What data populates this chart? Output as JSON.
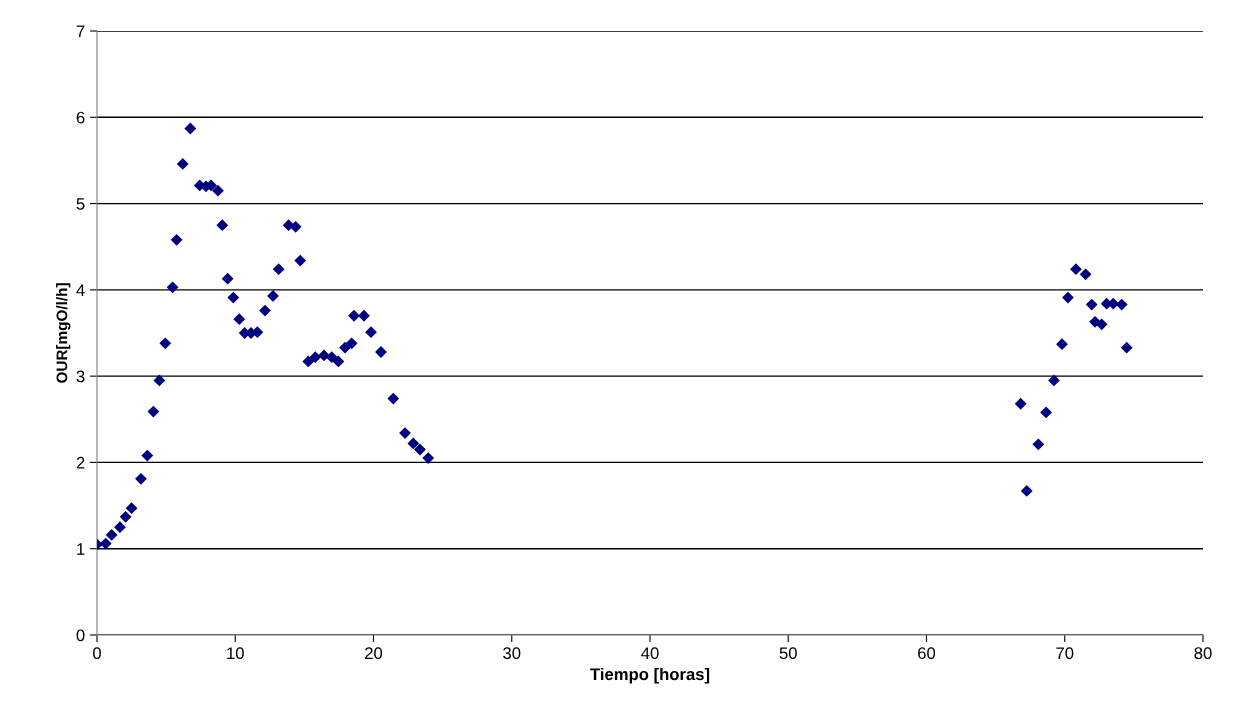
{
  "chart_data": {
    "type": "scatter",
    "xlabel": "Tiempo [horas]",
    "ylabel": "OUR[mgO/l/h]",
    "xlim": [
      0,
      80
    ],
    "xticks": [
      0,
      10,
      20,
      30,
      40,
      50,
      60,
      70,
      80
    ],
    "ylim": [
      0,
      7
    ],
    "yticks": [
      0,
      1,
      2,
      3,
      4,
      5,
      6,
      7
    ],
    "grid": "y",
    "marker": "diamond",
    "series": [
      {
        "color": "#000080",
        "x": [
          0,
          0.63,
          1.06,
          1.66,
          2.07,
          2.5,
          3.18,
          3.64,
          4.08,
          4.51,
          4.94,
          5.47,
          5.76,
          6.2,
          6.75,
          7.43,
          7.88,
          8.25,
          8.75,
          9.06,
          9.45,
          9.86,
          10.29,
          10.68,
          11.14,
          11.6,
          12.15,
          12.73,
          13.14,
          13.86,
          14.37,
          14.7,
          15.28,
          15.79,
          16.42,
          16.98,
          17.46,
          17.94,
          18.42,
          18.59,
          19.31,
          19.82,
          20.54,
          21.43,
          22.28,
          22.88,
          23.36,
          23.96,
          66.81,
          67.25,
          68.09,
          68.65,
          69.22,
          69.8,
          70.23,
          70.81,
          71.51,
          71.95,
          72.19,
          72.67,
          73.03,
          73.51,
          74.12,
          74.48
        ],
        "values": [
          1.05,
          1.06,
          1.16,
          1.25,
          1.37,
          1.47,
          1.81,
          2.08,
          2.59,
          2.95,
          3.38,
          4.03,
          4.58,
          5.46,
          5.87,
          5.21,
          5.2,
          5.21,
          5.15,
          4.75,
          4.13,
          3.91,
          3.66,
          3.5,
          3.5,
          3.51,
          3.76,
          3.93,
          4.24,
          4.75,
          4.73,
          4.34,
          3.17,
          3.22,
          3.24,
          3.22,
          3.17,
          3.33,
          3.38,
          3.7,
          3.7,
          3.51,
          3.28,
          2.74,
          2.34,
          2.22,
          2.15,
          2.05,
          2.68,
          1.67,
          2.21,
          2.58,
          2.95,
          3.37,
          3.91,
          4.24,
          4.18,
          3.83,
          3.63,
          3.6,
          3.84,
          3.84,
          3.83,
          3.33
        ]
      }
    ]
  }
}
